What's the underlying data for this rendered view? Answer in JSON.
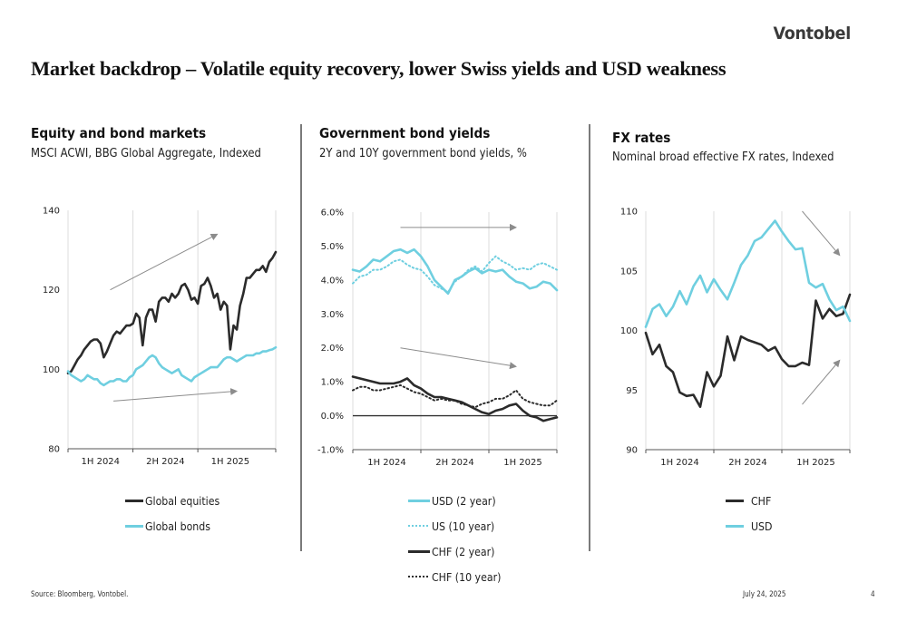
{
  "brand": "Vontobel",
  "page_title": "Market backdrop – Volatile equity recovery, lower Swiss yields and USD weakness",
  "footer": {
    "source": "Source: Bloomberg, Vontobel.",
    "date": "July 24, 2025",
    "page_number": "4"
  },
  "colors": {
    "dark": "#2b2b2b",
    "light_blue": "#6fcfe0",
    "arrow": "#8c8c8c",
    "grid": "#dcdcdc"
  },
  "panels": [
    {
      "title": "Equity and bond markets",
      "subtitle": "MSCI ACWI, BBG Global Aggregate, Indexed",
      "legend": [
        {
          "label": "Global equities",
          "style": "solid",
          "color": "#2b2b2b"
        },
        {
          "label": "Global bonds",
          "style": "solid",
          "color": "#6fcfe0"
        }
      ]
    },
    {
      "title": "Government bond yields",
      "subtitle": "2Y and 10Y government bond yields, %",
      "legend": [
        {
          "label": "USD (2 year)",
          "style": "solid",
          "color": "#6fcfe0"
        },
        {
          "label": "US (10 year)",
          "style": "dotted",
          "color": "#6fcfe0"
        },
        {
          "label": "CHF (2 year)",
          "style": "solid",
          "color": "#2b2b2b"
        },
        {
          "label": "CHF (10 year)",
          "style": "dotted",
          "color": "#2b2b2b"
        }
      ]
    },
    {
      "title": "FX rates",
      "subtitle": "Nominal broad effective FX rates, Indexed",
      "legend": [
        {
          "label": "CHF",
          "style": "solid",
          "color": "#2b2b2b"
        },
        {
          "label": "USD",
          "style": "solid",
          "color": "#6fcfe0"
        }
      ]
    }
  ],
  "chart_data": [
    {
      "type": "line",
      "title": "Equity and bond markets",
      "subtitle": "MSCI ACWI, BBG Global Aggregate, Indexed",
      "xlabel": "",
      "ylabel": "",
      "ylim": [
        80,
        140
      ],
      "yticks": [
        "80",
        "100",
        "120",
        "140"
      ],
      "ytick_values": [
        80,
        100,
        120,
        140
      ],
      "x_categories": [
        "1H 2024",
        "2H 2024",
        "1H 2025"
      ],
      "x_range": [
        0,
        3.2
      ],
      "grid": "vertical",
      "annotations": [
        {
          "type": "arrow",
          "label": "equities uptrend",
          "from": [
            0.65,
            120
          ],
          "to": [
            2.3,
            134
          ]
        },
        {
          "type": "arrow",
          "label": "bonds uptrend",
          "from": [
            0.7,
            92
          ],
          "to": [
            2.6,
            94.5
          ]
        }
      ],
      "series": [
        {
          "name": "Global equities",
          "style": "solid",
          "color": "#2b2b2b",
          "x": [
            0,
            0.05,
            0.1,
            0.15,
            0.2,
            0.25,
            0.3,
            0.35,
            0.4,
            0.45,
            0.5,
            0.55,
            0.6,
            0.65,
            0.7,
            0.75,
            0.8,
            0.85,
            0.9,
            0.95,
            1.0,
            1.05,
            1.1,
            1.15,
            1.2,
            1.25,
            1.3,
            1.35,
            1.4,
            1.45,
            1.5,
            1.55,
            1.6,
            1.65,
            1.7,
            1.75,
            1.8,
            1.85,
            1.9,
            1.95,
            2.0,
            2.05,
            2.1,
            2.15,
            2.2,
            2.25,
            2.3,
            2.35,
            2.4,
            2.45,
            2.5,
            2.55,
            2.6,
            2.65,
            2.7,
            2.75,
            2.8,
            2.85,
            2.9,
            2.95,
            3.0,
            3.05,
            3.1,
            3.15,
            3.2
          ],
          "values": [
            99,
            99.5,
            101,
            102.5,
            103.5,
            105,
            106,
            107,
            107.5,
            107.5,
            106.5,
            103,
            104.5,
            106.5,
            108.5,
            109.5,
            109,
            110,
            111,
            111,
            111.5,
            114,
            113,
            106,
            113,
            115,
            115,
            112,
            117,
            118,
            118,
            117,
            119,
            118,
            119,
            121,
            121.5,
            120,
            117.5,
            118,
            116.5,
            121,
            121.5,
            123,
            121,
            118,
            119,
            115,
            117,
            116,
            105,
            111,
            110,
            116,
            119,
            123,
            123,
            124,
            125,
            125,
            126,
            124.5,
            127,
            128,
            129.5
          ]
        },
        {
          "name": "Global bonds",
          "style": "solid",
          "color": "#6fcfe0",
          "x": [
            0,
            0.05,
            0.1,
            0.15,
            0.2,
            0.25,
            0.3,
            0.35,
            0.4,
            0.45,
            0.5,
            0.55,
            0.6,
            0.65,
            0.7,
            0.75,
            0.8,
            0.85,
            0.9,
            0.95,
            1.0,
            1.05,
            1.1,
            1.15,
            1.2,
            1.25,
            1.3,
            1.35,
            1.4,
            1.45,
            1.5,
            1.55,
            1.6,
            1.65,
            1.7,
            1.75,
            1.8,
            1.85,
            1.9,
            1.95,
            2.0,
            2.05,
            2.1,
            2.15,
            2.2,
            2.25,
            2.3,
            2.35,
            2.4,
            2.45,
            2.5,
            2.55,
            2.6,
            2.65,
            2.7,
            2.75,
            2.8,
            2.85,
            2.9,
            2.95,
            3.0,
            3.05,
            3.1,
            3.15,
            3.2
          ],
          "values": [
            99.5,
            98.5,
            98,
            97.5,
            97,
            97.5,
            98.5,
            98,
            97.5,
            97.5,
            96.5,
            96,
            96.5,
            97,
            97,
            97.5,
            97.5,
            97,
            97,
            98,
            98.5,
            100,
            100.5,
            101,
            102,
            103,
            103.5,
            103,
            101.5,
            100.5,
            100,
            99.5,
            99,
            99.5,
            100,
            98.5,
            98,
            97.5,
            97,
            98,
            98.5,
            99,
            99.5,
            100,
            100.5,
            100.5,
            100.5,
            101.5,
            102.5,
            103,
            103,
            102.5,
            102,
            102.5,
            103,
            103.5,
            103.5,
            103.5,
            104,
            104,
            104.5,
            104.5,
            104.8,
            105,
            105.5
          ]
        }
      ]
    },
    {
      "type": "line",
      "title": "Government bond yields",
      "subtitle": "2Y and 10Y government bond yields, %",
      "xlabel": "",
      "ylabel": "",
      "ylim": [
        -1.0,
        6.0
      ],
      "yticks": [
        "-1.0%",
        "0.0%",
        "1.0%",
        "2.0%",
        "3.0%",
        "4.0%",
        "5.0%",
        "6.0%"
      ],
      "ytick_values": [
        -1,
        0,
        1,
        2,
        3,
        4,
        5,
        6
      ],
      "x_categories": [
        "1H 2024",
        "2H 2024",
        "1H 2025"
      ],
      "x_range": [
        0,
        3.0
      ],
      "grid": "vertical",
      "zero_line": true,
      "annotations": [
        {
          "type": "arrow",
          "label": "US yields flat",
          "from": [
            0.7,
            5.55
          ],
          "to": [
            2.4,
            5.55
          ]
        },
        {
          "type": "arrow",
          "label": "CHF yields lower",
          "from": [
            0.7,
            2.0
          ],
          "to": [
            2.4,
            1.45
          ]
        }
      ],
      "series": [
        {
          "name": "USD (2 year)",
          "style": "solid",
          "color": "#6fcfe0",
          "x": [
            0,
            0.1,
            0.2,
            0.3,
            0.4,
            0.5,
            0.6,
            0.7,
            0.8,
            0.9,
            1.0,
            1.1,
            1.2,
            1.3,
            1.4,
            1.5,
            1.6,
            1.7,
            1.8,
            1.9,
            2.0,
            2.1,
            2.2,
            2.3,
            2.4,
            2.5,
            2.6,
            2.7,
            2.8,
            2.9,
            3.0
          ],
          "values": [
            4.3,
            4.25,
            4.4,
            4.6,
            4.55,
            4.7,
            4.85,
            4.9,
            4.8,
            4.9,
            4.7,
            4.4,
            4.0,
            3.8,
            3.6,
            4.0,
            4.1,
            4.25,
            4.35,
            4.2,
            4.3,
            4.25,
            4.3,
            4.1,
            3.95,
            3.9,
            3.75,
            3.8,
            3.95,
            3.9,
            3.7
          ]
        },
        {
          "name": "US (10 year)",
          "style": "dotted",
          "color": "#6fcfe0",
          "x": [
            0,
            0.1,
            0.2,
            0.3,
            0.4,
            0.5,
            0.6,
            0.7,
            0.8,
            0.9,
            1.0,
            1.1,
            1.2,
            1.3,
            1.4,
            1.5,
            1.6,
            1.7,
            1.8,
            1.9,
            2.0,
            2.1,
            2.2,
            2.3,
            2.4,
            2.5,
            2.6,
            2.7,
            2.8,
            2.9,
            3.0
          ],
          "values": [
            3.9,
            4.1,
            4.15,
            4.3,
            4.3,
            4.4,
            4.55,
            4.6,
            4.45,
            4.35,
            4.3,
            4.1,
            3.85,
            3.75,
            3.65,
            3.95,
            4.1,
            4.3,
            4.4,
            4.25,
            4.5,
            4.7,
            4.55,
            4.45,
            4.3,
            4.35,
            4.3,
            4.45,
            4.5,
            4.4,
            4.3
          ]
        },
        {
          "name": "CHF (2 year)",
          "style": "solid",
          "color": "#2b2b2b",
          "x": [
            0,
            0.1,
            0.2,
            0.3,
            0.4,
            0.5,
            0.6,
            0.7,
            0.8,
            0.9,
            1.0,
            1.1,
            1.2,
            1.3,
            1.4,
            1.5,
            1.6,
            1.7,
            1.8,
            1.9,
            2.0,
            2.1,
            2.2,
            2.3,
            2.4,
            2.5,
            2.6,
            2.7,
            2.8,
            2.9,
            3.0
          ],
          "values": [
            1.15,
            1.1,
            1.05,
            1.0,
            0.95,
            0.95,
            0.95,
            1.0,
            1.1,
            0.9,
            0.8,
            0.65,
            0.55,
            0.55,
            0.5,
            0.45,
            0.4,
            0.3,
            0.2,
            0.1,
            0.05,
            0.15,
            0.2,
            0.3,
            0.35,
            0.15,
            0.0,
            -0.05,
            -0.15,
            -0.1,
            -0.05
          ]
        },
        {
          "name": "CHF (10 year)",
          "style": "dotted",
          "color": "#2b2b2b",
          "x": [
            0,
            0.1,
            0.2,
            0.3,
            0.4,
            0.5,
            0.6,
            0.7,
            0.8,
            0.9,
            1.0,
            1.1,
            1.2,
            1.3,
            1.4,
            1.5,
            1.6,
            1.7,
            1.8,
            1.9,
            2.0,
            2.1,
            2.2,
            2.3,
            2.4,
            2.5,
            2.6,
            2.7,
            2.8,
            2.9,
            3.0
          ],
          "values": [
            0.75,
            0.85,
            0.85,
            0.75,
            0.75,
            0.8,
            0.85,
            0.9,
            0.8,
            0.7,
            0.65,
            0.55,
            0.45,
            0.5,
            0.45,
            0.45,
            0.35,
            0.3,
            0.25,
            0.35,
            0.4,
            0.5,
            0.5,
            0.6,
            0.75,
            0.5,
            0.4,
            0.35,
            0.3,
            0.3,
            0.45
          ]
        }
      ]
    },
    {
      "type": "line",
      "title": "FX rates",
      "subtitle": "Nominal broad effective FX rates, Indexed",
      "xlabel": "",
      "ylabel": "",
      "ylim": [
        90,
        110
      ],
      "yticks": [
        "90",
        "95",
        "100",
        "105",
        "110"
      ],
      "ytick_values": [
        90,
        95,
        100,
        105,
        110
      ],
      "x_categories": [
        "1H 2024",
        "2H 2024",
        "1H 2025"
      ],
      "x_range": [
        0,
        3.0
      ],
      "grid": "vertical",
      "annotations": [
        {
          "type": "arrow",
          "label": "USD weakening",
          "from": [
            2.3,
            110
          ],
          "to": [
            2.85,
            106.3
          ]
        },
        {
          "type": "arrow",
          "label": "CHF strengthening",
          "from": [
            2.3,
            93.8
          ],
          "to": [
            2.85,
            97.5
          ]
        }
      ],
      "series": [
        {
          "name": "CHF",
          "style": "solid",
          "color": "#2b2b2b",
          "x": [
            0,
            0.1,
            0.2,
            0.3,
            0.4,
            0.5,
            0.6,
            0.7,
            0.8,
            0.9,
            1.0,
            1.1,
            1.2,
            1.3,
            1.4,
            1.5,
            1.6,
            1.7,
            1.8,
            1.9,
            2.0,
            2.1,
            2.2,
            2.3,
            2.4,
            2.5,
            2.6,
            2.7,
            2.8,
            2.9,
            3.0
          ],
          "values": [
            99.8,
            98,
            98.8,
            97,
            96.5,
            94.8,
            94.5,
            94.6,
            93.6,
            96.5,
            95.3,
            96.2,
            99.5,
            97.5,
            99.5,
            99.2,
            99,
            98.8,
            98.3,
            98.6,
            97.6,
            97,
            97,
            97.3,
            97.1,
            102.5,
            101,
            101.8,
            101.2,
            101.4,
            103
          ]
        },
        {
          "name": "USD",
          "style": "solid",
          "color": "#6fcfe0",
          "x": [
            0,
            0.1,
            0.2,
            0.3,
            0.4,
            0.5,
            0.6,
            0.7,
            0.8,
            0.9,
            1.0,
            1.1,
            1.2,
            1.3,
            1.4,
            1.5,
            1.6,
            1.7,
            1.8,
            1.9,
            2.0,
            2.1,
            2.2,
            2.3,
            2.4,
            2.5,
            2.6,
            2.7,
            2.8,
            2.9,
            3.0
          ],
          "values": [
            100.3,
            101.8,
            102.2,
            101.2,
            102,
            103.3,
            102.2,
            103.7,
            104.6,
            103.2,
            104.3,
            103.4,
            102.6,
            104,
            105.5,
            106.3,
            107.5,
            107.8,
            108.5,
            109.2,
            108.3,
            107.5,
            106.8,
            106.9,
            104,
            103.6,
            103.9,
            102.6,
            101.7,
            102,
            100.8
          ]
        }
      ]
    }
  ]
}
